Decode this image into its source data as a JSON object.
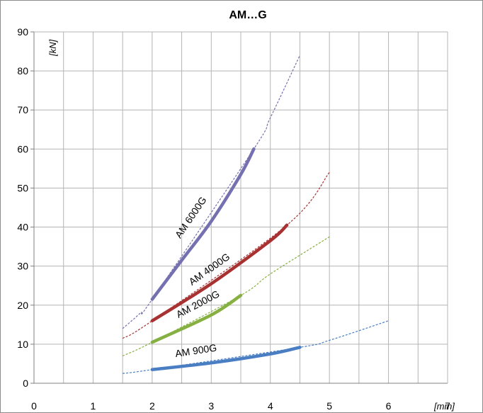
{
  "chart_data": {
    "type": "line",
    "title": "AM…G",
    "xunit": "[mm]",
    "yunit": "[kN]",
    "xlim": [
      0,
      7
    ],
    "ylim": [
      0,
      90
    ],
    "xticks": [
      0,
      1,
      2,
      3,
      4,
      5,
      6,
      7
    ],
    "xtick_labels": [
      "0",
      "1",
      "2",
      "3",
      "4",
      "5",
      "6",
      "7"
    ],
    "yticks": [
      0,
      10,
      20,
      30,
      40,
      50,
      60,
      70,
      80,
      90
    ],
    "ytick_labels": [
      "0",
      "10",
      "20",
      "30",
      "40",
      "50",
      "60",
      "70",
      "80",
      "90"
    ],
    "minor_x_grid_step": 0.5,
    "grid": true,
    "series": [
      {
        "name": "AM 6000G",
        "color": "#7570b0",
        "solid": [
          [
            2.0,
            21.5
          ],
          [
            2.5,
            31.5
          ],
          [
            3.0,
            41.5
          ],
          [
            3.5,
            53.5
          ],
          [
            3.72,
            60.0
          ]
        ],
        "extrapolated": [
          [
            1.5,
            14.0
          ],
          [
            1.8,
            18.0
          ],
          [
            2.0,
            21.5
          ],
          [
            3.72,
            60.0
          ],
          [
            4.0,
            68.0
          ],
          [
            4.5,
            84.0
          ]
        ],
        "label_pos": [
          2.7,
          42
        ]
      },
      {
        "name": "AM 4000G",
        "color": "#a83232",
        "solid": [
          [
            2.0,
            16.0
          ],
          [
            3.0,
            25.5
          ],
          [
            4.0,
            36.5
          ],
          [
            4.28,
            40.5
          ]
        ],
        "extrapolated": [
          [
            1.5,
            11.5
          ],
          [
            2.0,
            16.0
          ],
          [
            4.28,
            40.5
          ],
          [
            5.0,
            54.0
          ]
        ],
        "label_pos": [
          3.0,
          28.5
        ]
      },
      {
        "name": "AM 2000G",
        "color": "#86b041",
        "solid": [
          [
            2.0,
            10.5
          ],
          [
            3.0,
            17.5
          ],
          [
            3.5,
            22.5
          ]
        ],
        "extrapolated": [
          [
            1.5,
            7.0
          ],
          [
            2.0,
            10.5
          ],
          [
            3.5,
            22.5
          ],
          [
            4.0,
            28.0
          ],
          [
            5.0,
            37.5
          ]
        ],
        "label_pos": [
          2.8,
          19.5
        ]
      },
      {
        "name": "AM 900G",
        "color": "#4a7ec3",
        "solid": [
          [
            2.0,
            3.5
          ],
          [
            3.0,
            5.2
          ],
          [
            4.0,
            7.5
          ],
          [
            4.5,
            9.2
          ]
        ],
        "extrapolated": [
          [
            1.5,
            2.5
          ],
          [
            2.0,
            3.5
          ],
          [
            4.5,
            9.2
          ],
          [
            5.0,
            11.0
          ],
          [
            6.0,
            16.0
          ]
        ],
        "label_pos": [
          2.75,
          7.5
        ]
      }
    ]
  }
}
